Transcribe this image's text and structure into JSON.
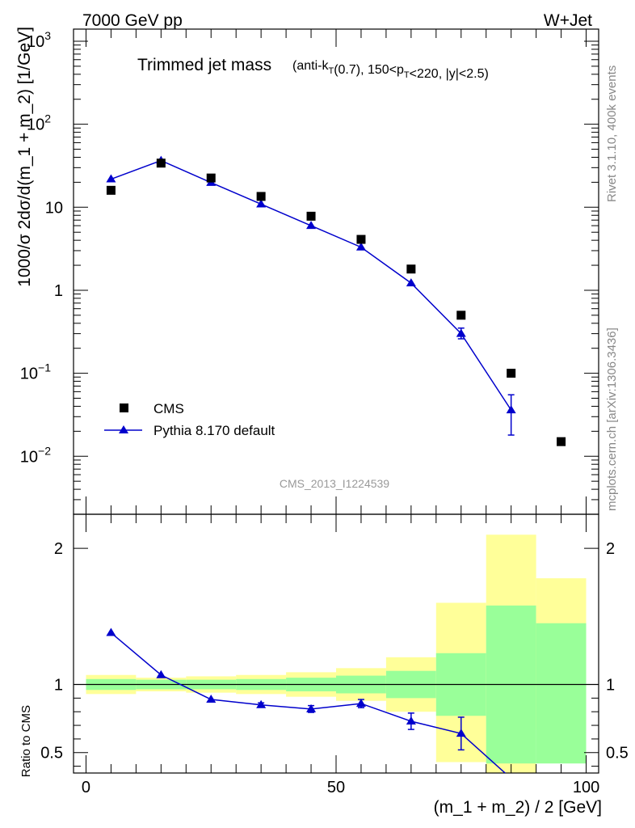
{
  "header": {
    "left": "7000 GeV pp",
    "right": "W+Jet"
  },
  "title": {
    "main": "Trimmed jet mass",
    "detail": "(anti-k_T(0.7), 150<p_T<220, |y|<2.5)"
  },
  "side_labels": {
    "rivet": "Rivet 3.1.10,  400k events",
    "mcplots": "mcplots.cern.ch [arXiv:1306.3436]"
  },
  "analysis_id": "CMS_2013_I1224539",
  "legend": {
    "data_label": "CMS",
    "mc_label": "Pythia 8.170 default"
  },
  "axis_labels": {
    "ylabel_main": "1000/σ 2dσ/d(m_1 + m_2) [1/GeV]",
    "ylabel_ratio": "Ratio to CMS",
    "xlabel": "(m_1 + m_2) / 2 [GeV]"
  },
  "colors": {
    "mc_line": "#0000cc",
    "data_marker": "#000000",
    "band_inner": "#99ff99",
    "band_outer": "#ffff99"
  },
  "chart_data": [
    {
      "type": "scatter",
      "panel": "main",
      "xlim": [
        -2.5,
        102.5
      ],
      "ylim": [
        0.002,
        1400
      ],
      "yscale": "log",
      "x": [
        5,
        15,
        25,
        35,
        45,
        55,
        65,
        75,
        85,
        95
      ],
      "series": [
        {
          "name": "CMS",
          "values": [
            16,
            34,
            22.5,
            13.5,
            7.8,
            4.1,
            1.8,
            0.5,
            0.1,
            0.015
          ]
        },
        {
          "name": "Pythia 8.170 default",
          "values": [
            21.8,
            36.5,
            19.8,
            10.9,
            6.0,
            3.3,
            1.22,
            0.3,
            0.036
          ],
          "yerr_low": [
            0,
            0,
            0,
            0,
            0,
            0,
            0,
            0.04,
            0.018
          ],
          "yerr_high": [
            0,
            0,
            0,
            0,
            0,
            0,
            0,
            0.05,
            0.019
          ]
        }
      ],
      "yticks": [
        {
          "value": 0.01,
          "base": "10",
          "exp": "−2"
        },
        {
          "value": 0.1,
          "base": "10",
          "exp": "−1"
        },
        {
          "value": 1,
          "base": "1",
          "exp": ""
        },
        {
          "value": 10,
          "base": "10",
          "exp": ""
        },
        {
          "value": 100,
          "base": "10",
          "exp": "2"
        },
        {
          "value": 1000,
          "base": "10",
          "exp": "3"
        }
      ]
    },
    {
      "type": "line",
      "panel": "ratio",
      "xlim": [
        -2.5,
        102.5
      ],
      "ylim": [
        0.35,
        2.25
      ],
      "yticks": [
        "0.5",
        "1",
        "2"
      ],
      "xticks": [
        "0",
        "50",
        "100"
      ],
      "x": [
        5,
        15,
        25,
        35,
        45,
        55,
        65,
        75,
        85
      ],
      "values": [
        1.38,
        1.07,
        0.89,
        0.85,
        0.82,
        0.86,
        0.73,
        0.64,
        0.31
      ],
      "yerr_low": [
        0,
        0,
        0,
        0.015,
        0.025,
        0.03,
        0.06,
        0.12,
        0
      ],
      "yerr_high": [
        0,
        0,
        0,
        0.015,
        0.025,
        0.03,
        0.06,
        0.12,
        0
      ],
      "bands": {
        "bin_edges": [
          0,
          10,
          20,
          30,
          40,
          50,
          60,
          70,
          80,
          90,
          100
        ],
        "inner_low": [
          0.96,
          0.965,
          0.965,
          0.96,
          0.95,
          0.935,
          0.9,
          0.77,
          0.42,
          0.42
        ],
        "inner_high": [
          1.04,
          1.035,
          1.035,
          1.04,
          1.05,
          1.065,
          1.1,
          1.23,
          1.58,
          1.45
        ],
        "outer_low": [
          0.93,
          0.95,
          0.94,
          0.93,
          0.91,
          0.88,
          0.8,
          0.43,
          0.3,
          0.67
        ],
        "outer_high": [
          1.07,
          1.05,
          1.06,
          1.07,
          1.09,
          1.12,
          1.2,
          1.6,
          2.1,
          1.78
        ]
      }
    }
  ]
}
